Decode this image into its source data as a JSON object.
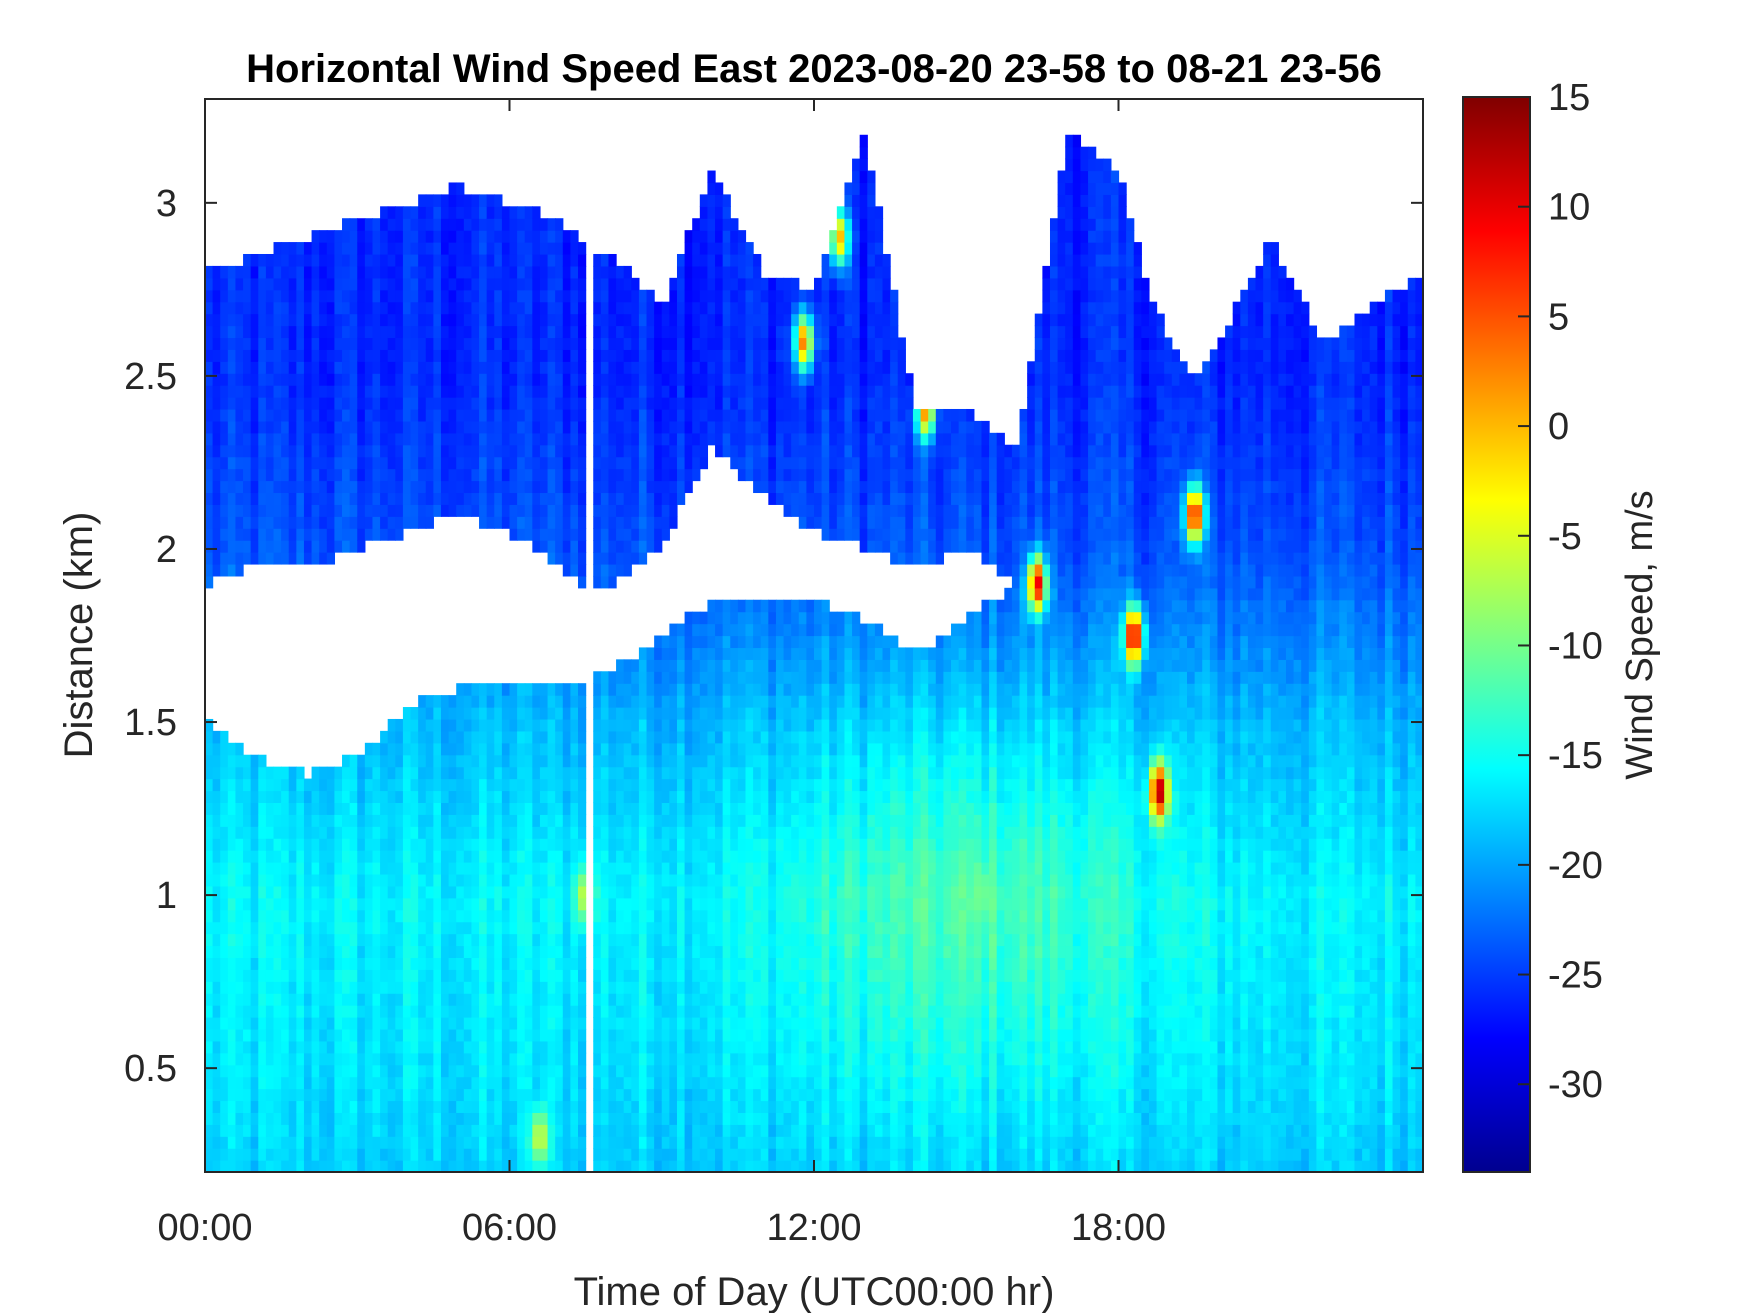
{
  "chart_data": {
    "type": "heatmap",
    "title": "Horizontal Wind Speed East 2023-08-20 23-58 to 08-21 23-56",
    "xlabel": "Time of Day (UTC00:00 hr)",
    "ylabel": "Distance (km)",
    "colorbar_label": "Wind Speed, m/s",
    "x_unit": "hours",
    "xlim": [
      0,
      24
    ],
    "ylim": [
      0.2,
      3.3
    ],
    "x_ticks": [
      {
        "value": 0,
        "label": "00:00"
      },
      {
        "value": 6,
        "label": "06:00"
      },
      {
        "value": 12,
        "label": "12:00"
      },
      {
        "value": 18,
        "label": "18:00"
      }
    ],
    "y_ticks": [
      {
        "value": 0.5,
        "label": "0.5"
      },
      {
        "value": 1,
        "label": "1"
      },
      {
        "value": 1.5,
        "label": "1.5"
      },
      {
        "value": 2,
        "label": "2"
      },
      {
        "value": 2.5,
        "label": "2.5"
      },
      {
        "value": 3,
        "label": "3"
      }
    ],
    "colorbar": {
      "colormap": "jet",
      "clim": [
        -34,
        15
      ],
      "ticks": [
        {
          "value": 15,
          "label": "15"
        },
        {
          "value": 10,
          "label": "10"
        },
        {
          "value": 5,
          "label": "5"
        },
        {
          "value": 0,
          "label": "0"
        },
        {
          "value": -5,
          "label": "-5"
        },
        {
          "value": -10,
          "label": "-10"
        },
        {
          "value": -15,
          "label": "-15"
        },
        {
          "value": -20,
          "label": "-20"
        },
        {
          "value": -25,
          "label": "-25"
        },
        {
          "value": -30,
          "label": "-30"
        }
      ]
    },
    "grid": false,
    "data_top_boundary_km": {
      "time_hr": [
        0,
        1,
        2,
        3,
        4,
        5,
        6,
        7,
        7.4,
        7.6,
        8,
        9,
        10,
        11,
        12,
        13,
        14,
        15,
        16,
        17,
        18,
        18.5,
        19,
        19.5,
        20,
        21,
        22,
        23,
        24
      ],
      "distance_km": [
        2.8,
        2.85,
        2.9,
        2.95,
        3.0,
        3.05,
        3.0,
        2.95,
        2.9,
        2.85,
        2.85,
        2.7,
        3.1,
        2.8,
        2.75,
        3.2,
        2.4,
        2.4,
        2.3,
        3.2,
        3.1,
        2.8,
        2.6,
        2.5,
        2.6,
        2.9,
        2.6,
        2.7,
        2.8
      ]
    },
    "data_gap_band_km": {
      "time_hr": [
        0,
        1,
        2,
        3,
        4,
        5,
        6,
        7,
        7.4,
        7.6,
        8,
        9,
        10,
        11,
        12,
        13,
        14,
        15,
        16,
        24
      ],
      "lower_km": [
        1.5,
        1.4,
        1.35,
        1.4,
        1.55,
        1.6,
        1.62,
        1.62,
        1.62,
        1.65,
        1.65,
        1.75,
        1.85,
        1.85,
        1.85,
        1.8,
        1.7,
        1.8,
        1.9,
        1.9
      ],
      "upper_km": [
        1.9,
        1.95,
        1.95,
        2.0,
        2.05,
        2.1,
        2.05,
        1.95,
        1.9,
        1.9,
        1.9,
        2.0,
        2.3,
        2.15,
        2.05,
        2.0,
        1.95,
        2.0,
        1.9,
        1.9
      ]
    },
    "speed_by_height": {
      "distance_km": [
        0.2,
        0.5,
        1.0,
        1.5,
        2.0,
        2.5,
        3.0,
        3.3
      ],
      "wind_speed_ms": [
        -18,
        -17,
        -16,
        -19,
        -24,
        -26,
        -26,
        -26
      ]
    },
    "highlights": [
      {
        "time_hr": 6.6,
        "distance_km": 0.3,
        "wind_speed_ms": -5
      },
      {
        "time_hr": 7.5,
        "distance_km": 1.0,
        "wind_speed_ms": -5
      },
      {
        "time_hr": 11.8,
        "distance_km": 2.6,
        "wind_speed_ms": 3
      },
      {
        "time_hr": 12.5,
        "distance_km": 2.9,
        "wind_speed_ms": 0
      },
      {
        "time_hr": 14.2,
        "distance_km": 2.4,
        "wind_speed_ms": 2
      },
      {
        "time_hr": 15.3,
        "distance_km": 1.0,
        "wind_speed_ms": -10
      },
      {
        "time_hr": 16.4,
        "distance_km": 1.9,
        "wind_speed_ms": 10
      },
      {
        "time_hr": 18.3,
        "distance_km": 1.75,
        "wind_speed_ms": 12
      },
      {
        "time_hr": 18.8,
        "distance_km": 1.3,
        "wind_speed_ms": 13
      },
      {
        "time_hr": 19.5,
        "distance_km": 2.1,
        "wind_speed_ms": 10
      }
    ]
  }
}
